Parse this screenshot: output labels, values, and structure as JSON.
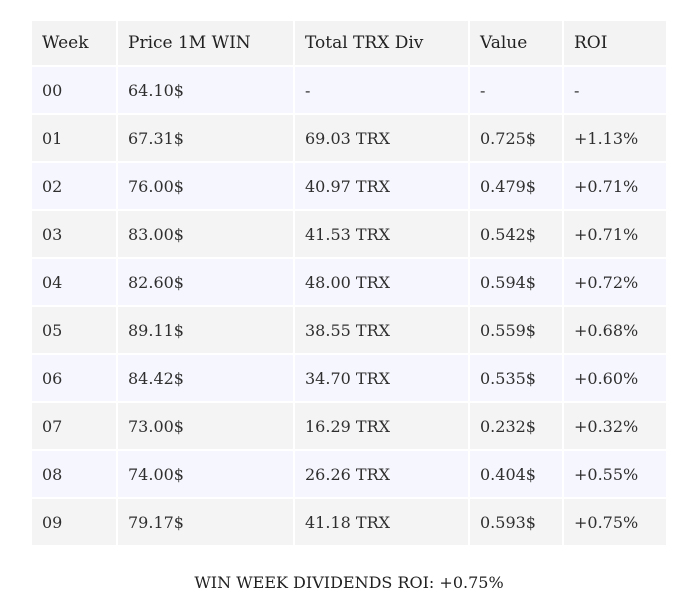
{
  "table": {
    "headers": [
      "Week",
      "Price 1M WIN",
      "Total TRX Div",
      "Value",
      "ROI"
    ],
    "rows": [
      [
        "00",
        "64.10$",
        "-",
        "-",
        "-"
      ],
      [
        "01",
        "67.31$",
        "69.03 TRX",
        "0.725$",
        "+1.13%"
      ],
      [
        "02",
        "76.00$",
        "40.97 TRX",
        "0.479$",
        "+0.71%"
      ],
      [
        "03",
        "83.00$",
        "41.53 TRX",
        "0.542$",
        "+0.71%"
      ],
      [
        "04",
        "82.60$",
        "48.00 TRX",
        "0.594$",
        "+0.72%"
      ],
      [
        "05",
        "89.11$",
        "38.55 TRX",
        "0.559$",
        "+0.68%"
      ],
      [
        "06",
        "84.42$",
        "34.70 TRX",
        "0.535$",
        "+0.60%"
      ],
      [
        "07",
        "73.00$",
        "16.29 TRX",
        "0.232$",
        "+0.32%"
      ],
      [
        "08",
        "74.00$",
        "26.26 TRX",
        "0.404$",
        "+0.55%"
      ],
      [
        "09",
        "79.17$",
        "41.18 TRX",
        "0.593$",
        "+0.75%"
      ]
    ]
  },
  "caption": "WIN WEEK DIVIDENDS ROI: +0.75%",
  "colors": {
    "header_bg": "#f3f3f3",
    "row_odd_bg": "#f6f6fe",
    "row_even_bg": "#f4f4f4",
    "text": "#2f2f2f"
  }
}
